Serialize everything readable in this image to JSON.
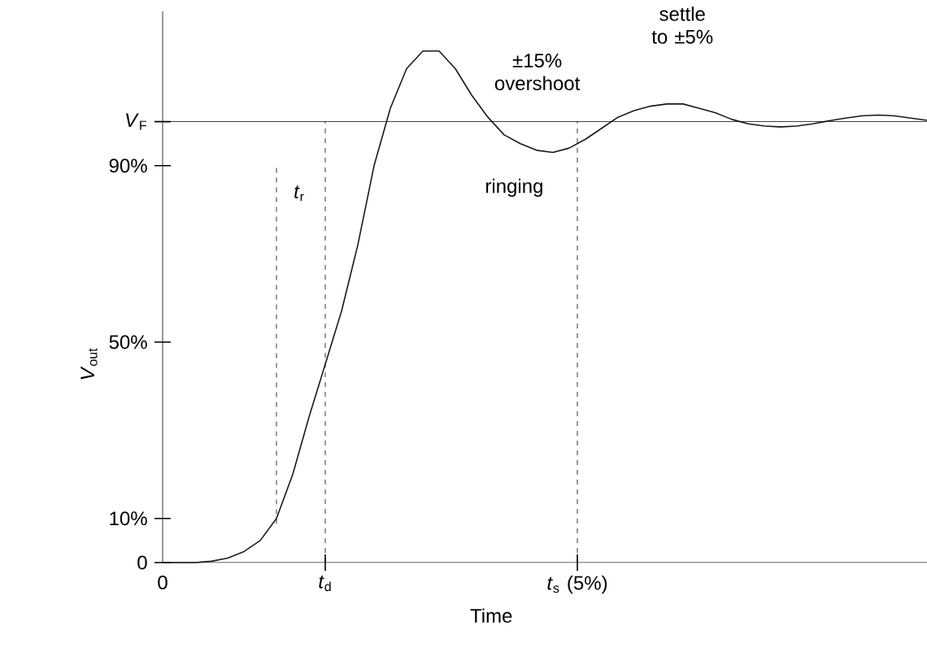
{
  "chart_data": {
    "type": "line",
    "xlabel": "Time",
    "ylabel": "*V*$_{out}$",
    "categories": [
      null,
      null,
      null,
      null,
      null,
      null,
      null,
      null,
      null,
      null,
      null,
      null,
      null,
      null,
      null,
      null,
      null,
      null,
      null,
      null,
      null,
      null,
      null,
      null,
      null,
      null,
      null,
      null,
      null,
      null,
      null,
      null,
      null,
      null,
      null,
      null,
      null,
      null,
      null,
      null,
      null,
      null,
      null,
      null,
      null,
      null,
      null,
      null
    ],
    "series": [
      {
        "color": "#1a1a1a",
        "values": [
          0,
          0,
          0,
          0.3,
          1,
          2.5,
          5,
          10,
          20,
          33,
          45,
          57,
          72,
          90,
          103,
          112,
          116,
          116,
          112,
          106,
          101,
          97,
          95,
          93.5,
          93,
          94,
          96,
          98.5,
          101,
          102.5,
          103.5,
          104,
          104,
          103,
          102,
          100.5,
          99.5,
          99,
          98.8,
          99,
          99.5,
          100.2,
          100.8,
          101.3,
          101.5,
          101.3,
          100.8,
          100.3
        ]
      }
    ],
    "ylim": [
      0,
      125
    ],
    "yticks": [
      {
        "value": 0,
        "label": "0"
      },
      {
        "value": 10,
        "label": "10%"
      },
      {
        "value": 50,
        "label": "50%"
      },
      {
        "value": 90,
        "label": "90%"
      },
      {
        "value": 100,
        "label": "*V*$_{F}$"
      }
    ],
    "ref_lines": [
      {
        "axis": "y",
        "value": 100,
        "line_style": "solid"
      }
    ],
    "annotations": [
      "0",
      "*t*$_{d}$",
      "*t*$_{s}$ (5%)",
      "±15% overshoot",
      "settle to ±5%",
      "ringing",
      "*t*$_{r}$"
    ],
    "marker": "none",
    "line_style": "solid"
  }
}
